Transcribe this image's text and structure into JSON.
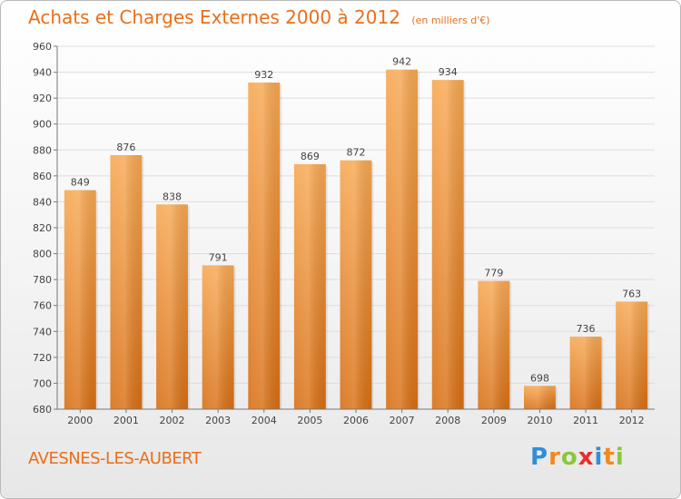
{
  "header": {
    "title": "Achats et Charges Externes 2000 à 2012",
    "subtitle": "(en milliers d'€)"
  },
  "footer": {
    "city": "AVESNES-LES-AUBERT",
    "logo": {
      "letters": [
        "P",
        "r",
        "o",
        "x",
        "i",
        "t",
        "i"
      ],
      "colors": [
        "#2f8fd8",
        "#f08a1e",
        "#8cc63f",
        "#e8302a",
        "#2f8fd8",
        "#f08a1e",
        "#8cc63f"
      ]
    }
  },
  "colors": {
    "bar_top": "#f7a853",
    "bar_bottom": "#d86f14",
    "accent": "#ea6e1b",
    "grid": "#dddddd"
  },
  "chart_data": {
    "type": "bar",
    "title": "Achats et Charges Externes 2000 à 2012",
    "subtitle": "(en milliers d'€)",
    "categories": [
      "2000",
      "2001",
      "2002",
      "2003",
      "2004",
      "2005",
      "2006",
      "2007",
      "2008",
      "2009",
      "2010",
      "2011",
      "2012"
    ],
    "values": [
      849,
      876,
      838,
      791,
      932,
      869,
      872,
      942,
      934,
      779,
      698,
      736,
      763
    ],
    "ylim": [
      680,
      960
    ],
    "yticks": [
      680,
      700,
      720,
      740,
      760,
      780,
      800,
      820,
      840,
      860,
      880,
      900,
      920,
      940,
      960
    ],
    "grid": true,
    "legend": "none"
  }
}
